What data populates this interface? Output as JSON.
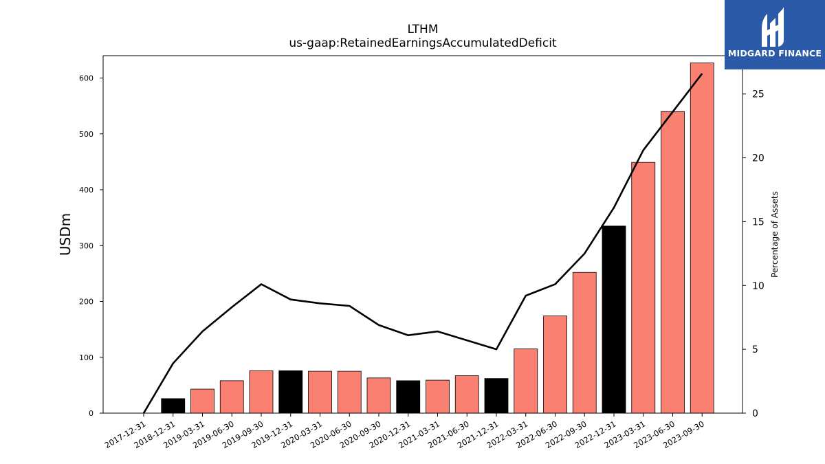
{
  "title_line1": "LTHM",
  "title_line2": "us-gaap:RetainedEarningsAccumulatedDeficit",
  "logo": {
    "text": "MIDGARD FINANCE",
    "color": "#2a5aa8"
  },
  "chart_data": {
    "type": "bar",
    "categories": [
      "2017-12-31",
      "2018-12-31",
      "2019-03-31",
      "2019-06-30",
      "2019-09-30",
      "2019-12-31",
      "2020-03-31",
      "2020-06-30",
      "2020-09-30",
      "2020-12-31",
      "2021-03-31",
      "2021-06-30",
      "2021-12-31",
      "2022-03-31",
      "2022-06-30",
      "2022-09-30",
      "2022-12-31",
      "2023-03-31",
      "2023-06-30",
      "2023-09-30"
    ],
    "series": [
      {
        "name": "",
        "axis": "left",
        "type": "bar",
        "values": [
          0,
          26,
          43,
          58,
          76,
          76,
          75,
          75,
          63,
          58,
          59,
          67,
          62,
          115,
          174,
          252,
          335,
          449,
          540,
          627
        ]
      },
      {
        "name": "",
        "axis": "right",
        "type": "line",
        "values": [
          0,
          3.9,
          6.4,
          8.3,
          10.1,
          8.9,
          8.6,
          8.4,
          6.9,
          6.1,
          6.4,
          5.7,
          5.0,
          9.2,
          10.1,
          12.5,
          16.1,
          20.6,
          23.6,
          26.6
        ]
      }
    ],
    "bar_colors": [
      "#fa8072",
      "#000000",
      "#fa8072",
      "#fa8072",
      "#fa8072",
      "#000000",
      "#fa8072",
      "#fa8072",
      "#fa8072",
      "#000000",
      "#fa8072",
      "#fa8072",
      "#000000",
      "#fa8072",
      "#fa8072",
      "#fa8072",
      "#000000",
      "#fa8072",
      "#fa8072",
      "#fa8072"
    ],
    "ylabel": "USDm",
    "ylabel_right": "Percentage of Assets",
    "ylim": [
      0,
      640
    ],
    "ylim_right": [
      0,
      28
    ],
    "yticks": [
      0,
      100,
      200,
      300,
      400,
      500,
      600
    ],
    "yticks_right": [
      0,
      5,
      10,
      15,
      20,
      25
    ],
    "grid": false,
    "line_color": "#000000"
  }
}
